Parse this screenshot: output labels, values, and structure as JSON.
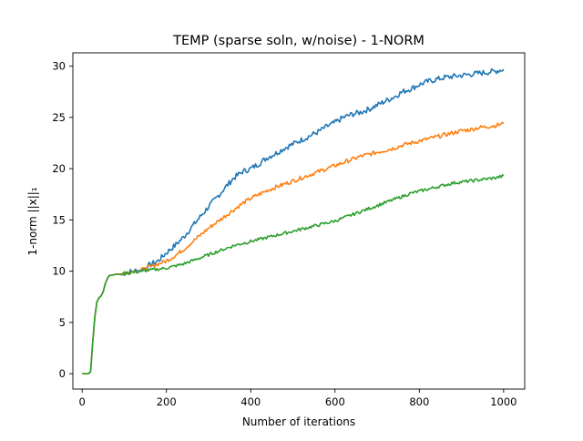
{
  "chart_data": {
    "type": "line",
    "title": "TEMP (sparse soln, w/noise) - 1-NORM",
    "xlabel": "Number of iterations",
    "ylabel": "1-norm ||x||₁",
    "xlim": [
      -22,
      1050
    ],
    "ylim": [
      -1.5,
      31.3
    ],
    "xticks": [
      0,
      200,
      400,
      600,
      800,
      1000
    ],
    "yticks": [
      0,
      5,
      10,
      15,
      20,
      25,
      30
    ],
    "xtick_labels": [
      "0",
      "200",
      "400",
      "600",
      "800",
      "1000"
    ],
    "ytick_labels": [
      "0",
      "5",
      "10",
      "15",
      "20",
      "25",
      "30"
    ],
    "grid": false,
    "legend": "none",
    "series": [
      {
        "color": "#1f77b4",
        "x": [
          0,
          15,
          20,
          25,
          30,
          35,
          40,
          45,
          50,
          55,
          60,
          65,
          70,
          80,
          90,
          100,
          120,
          140,
          160,
          180,
          200,
          220,
          240,
          260,
          280,
          300,
          320,
          340,
          360,
          380,
          400,
          420,
          440,
          460,
          480,
          500,
          520,
          540,
          560,
          580,
          600,
          620,
          640,
          660,
          680,
          700,
          720,
          740,
          760,
          780,
          800,
          820,
          840,
          860,
          880,
          900,
          920,
          940,
          960,
          980,
          1000
        ],
        "y": [
          0,
          0,
          0.2,
          3.0,
          5.5,
          7.0,
          7.4,
          7.6,
          8.0,
          8.8,
          9.3,
          9.6,
          9.6,
          9.7,
          9.7,
          9.8,
          10.0,
          10.1,
          10.6,
          11.0,
          11.8,
          12.5,
          13.3,
          14.3,
          15.3,
          16.3,
          17.2,
          18.2,
          19.1,
          19.7,
          20.0,
          20.5,
          21.1,
          21.5,
          22.0,
          22.4,
          22.8,
          23.2,
          23.6,
          24.1,
          24.5,
          25.0,
          25.3,
          25.5,
          25.8,
          26.2,
          26.6,
          27.0,
          27.5,
          27.8,
          28.2,
          28.5,
          28.7,
          28.9,
          29.0,
          29.1,
          29.2,
          29.3,
          29.4,
          29.5,
          29.7
        ]
      },
      {
        "color": "#ff7f0e",
        "x": [
          0,
          15,
          20,
          25,
          30,
          35,
          40,
          45,
          50,
          55,
          60,
          65,
          70,
          80,
          90,
          100,
          120,
          140,
          160,
          180,
          200,
          220,
          240,
          260,
          280,
          300,
          320,
          340,
          360,
          380,
          400,
          420,
          440,
          460,
          480,
          500,
          520,
          540,
          560,
          580,
          600,
          620,
          640,
          660,
          680,
          700,
          720,
          740,
          760,
          780,
          800,
          820,
          840,
          860,
          880,
          900,
          920,
          940,
          960,
          980,
          1000
        ],
        "y": [
          0,
          0,
          0.2,
          3.0,
          5.5,
          7.0,
          7.4,
          7.6,
          8.0,
          8.8,
          9.3,
          9.6,
          9.6,
          9.7,
          9.7,
          9.8,
          10.0,
          10.1,
          10.4,
          10.7,
          11.0,
          11.5,
          12.1,
          12.8,
          13.5,
          14.2,
          14.8,
          15.4,
          16.0,
          16.6,
          17.1,
          17.5,
          17.9,
          18.2,
          18.5,
          18.8,
          19.1,
          19.4,
          19.7,
          20.0,
          20.3,
          20.6,
          20.9,
          21.2,
          21.4,
          21.6,
          21.8,
          22.0,
          22.3,
          22.5,
          22.7,
          22.9,
          23.1,
          23.3,
          23.5,
          23.7,
          23.8,
          24.0,
          24.1,
          24.2,
          24.4
        ]
      },
      {
        "color": "#2ca02c",
        "x": [
          0,
          15,
          20,
          25,
          30,
          35,
          40,
          45,
          50,
          55,
          60,
          65,
          70,
          80,
          90,
          100,
          120,
          140,
          160,
          180,
          200,
          220,
          240,
          260,
          280,
          300,
          320,
          340,
          360,
          380,
          400,
          420,
          440,
          460,
          480,
          500,
          520,
          540,
          560,
          580,
          600,
          620,
          640,
          660,
          680,
          700,
          720,
          740,
          760,
          780,
          800,
          820,
          840,
          860,
          880,
          900,
          920,
          940,
          960,
          980,
          1000
        ],
        "y": [
          0,
          0,
          0.2,
          3.0,
          5.5,
          7.0,
          7.4,
          7.6,
          8.0,
          8.8,
          9.3,
          9.6,
          9.6,
          9.7,
          9.7,
          9.8,
          9.9,
          10.0,
          10.1,
          10.2,
          10.3,
          10.5,
          10.7,
          11.0,
          11.3,
          11.6,
          11.9,
          12.2,
          12.5,
          12.7,
          12.9,
          13.1,
          13.3,
          13.5,
          13.7,
          13.9,
          14.1,
          14.3,
          14.5,
          14.7,
          14.9,
          15.2,
          15.5,
          15.8,
          16.1,
          16.4,
          16.7,
          17.0,
          17.3,
          17.6,
          17.8,
          18.0,
          18.2,
          18.4,
          18.6,
          18.7,
          18.8,
          18.9,
          19.0,
          19.1,
          19.3
        ]
      }
    ]
  }
}
